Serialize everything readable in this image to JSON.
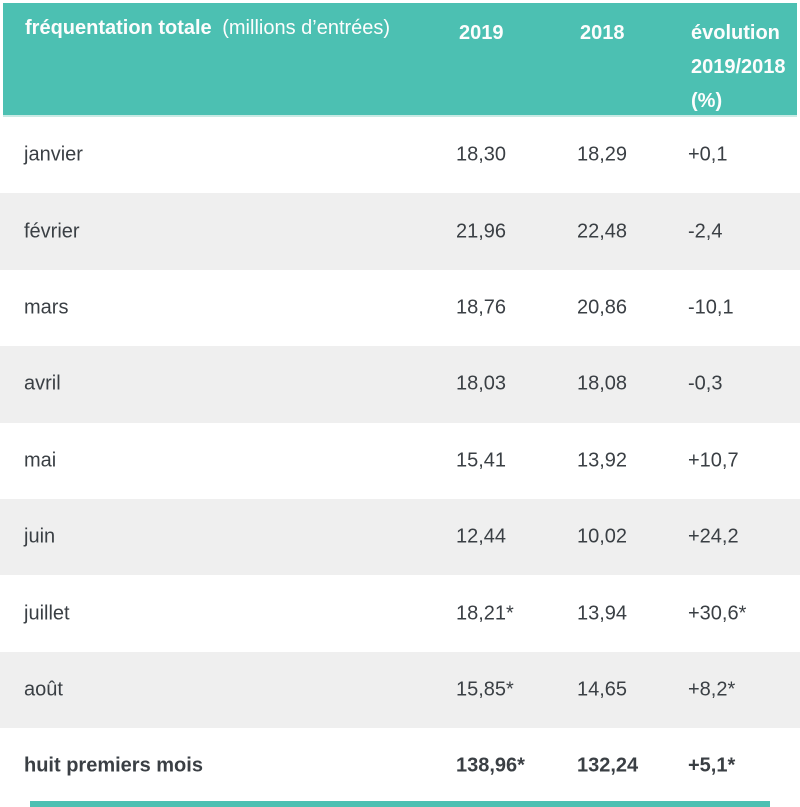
{
  "colors": {
    "teal": "#4CC0B2",
    "row_alternate": "#EFEFEF",
    "text": "#3A3F44",
    "header_text": "#FFFFFF"
  },
  "table": {
    "title": "fréquentation totale",
    "title_unit": "(millions d’entrées)",
    "columns": {
      "y2019": "2019",
      "y2018": "2018",
      "evolution_line1": "évolution",
      "evolution_line2": "2019/2018",
      "evolution_line3": "(%)"
    },
    "rows": [
      {
        "label": "janvier",
        "y2019": "18,30",
        "y2018": "18,29",
        "evolution": "+0,1"
      },
      {
        "label": "février",
        "y2019": "21,96",
        "y2018": "22,48",
        "evolution": "-2,4"
      },
      {
        "label": "mars",
        "y2019": "18,76",
        "y2018": "20,86",
        "evolution": "-10,1"
      },
      {
        "label": "avril",
        "y2019": "18,03",
        "y2018": "18,08",
        "evolution": "-0,3"
      },
      {
        "label": "mai",
        "y2019": "15,41",
        "y2018": "13,92",
        "evolution": "+10,7"
      },
      {
        "label": "juin",
        "y2019": "12,44",
        "y2018": "10,02",
        "evolution": "+24,2"
      },
      {
        "label": "juillet",
        "y2019": "18,21*",
        "y2018": "13,94",
        "evolution": "+30,6*"
      },
      {
        "label": "août",
        "y2019": "15,85*",
        "y2018": "14,65",
        "evolution": "+8,2*"
      },
      {
        "label": "huit premiers mois",
        "y2019": "138,96*",
        "y2018": "132,24",
        "evolution": "+5,1*"
      }
    ]
  }
}
